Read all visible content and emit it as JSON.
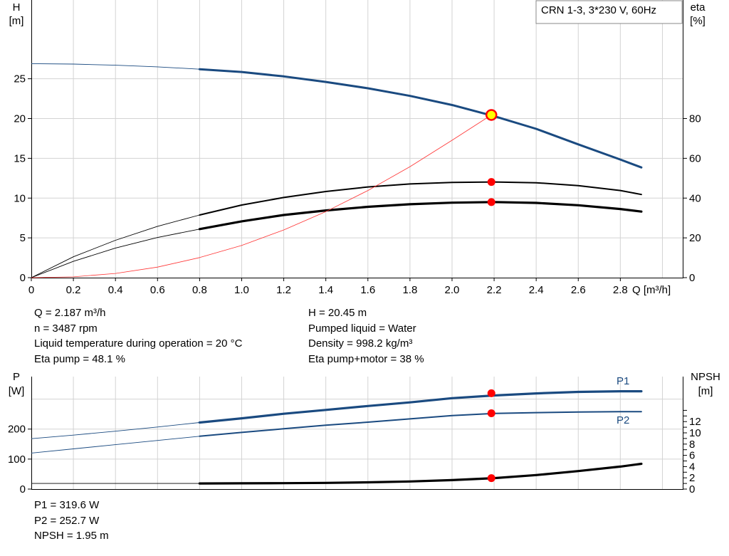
{
  "model_label": "CRN 1-3, 3*230 V, 60Hz",
  "colors": {
    "head": "#1a4a80",
    "power": "#1a4a80",
    "eta": "#ff3333",
    "black": "#000000",
    "marker": "#ff0000",
    "duty_fill": "#ffff00",
    "grid": "#d3d3d3"
  },
  "chart_data": [
    {
      "type": "line",
      "x_axis": {
        "label": "Q [m³/h]",
        "range": [
          0,
          3.1
        ],
        "ticks": [
          "0",
          "0.2",
          "0.4",
          "0.6",
          "0.8",
          "1.0",
          "1.2",
          "1.4",
          "1.6",
          "1.8",
          "2.0",
          "2.2",
          "2.4",
          "2.6",
          "2.8"
        ]
      },
      "y_axis_left": {
        "label_line1": "H",
        "label_line2": "[m]",
        "range": [
          0,
          34.9
        ],
        "ticks": [
          "0",
          "5",
          "10",
          "15",
          "20",
          "25"
        ]
      },
      "y_axis_right": {
        "label_line1": "eta",
        "label_line2": "[%]",
        "range": [
          0,
          139.6
        ],
        "ticks": [
          "0",
          "20",
          "40",
          "60",
          "80"
        ]
      },
      "grid": true,
      "series": [
        {
          "id": "head",
          "axis": "left",
          "color": "#1a4a80",
          "thin_until": 0.8,
          "x": [
            0,
            0.2,
            0.4,
            0.6,
            0.8,
            1.0,
            1.2,
            1.4,
            1.6,
            1.8,
            2.0,
            2.2,
            2.4,
            2.6,
            2.8,
            2.9
          ],
          "y": [
            26.9,
            26.85,
            26.7,
            26.5,
            26.2,
            25.85,
            25.3,
            24.6,
            23.8,
            22.85,
            21.7,
            20.3,
            18.7,
            16.75,
            14.85,
            13.85
          ]
        },
        {
          "id": "eta-pump",
          "axis": "right",
          "color": "#000000",
          "thin_until": 0.8,
          "x": [
            0,
            0.2,
            0.4,
            0.6,
            0.8,
            1.0,
            1.2,
            1.4,
            1.6,
            1.8,
            2.0,
            2.2,
            2.4,
            2.6,
            2.8,
            2.9
          ],
          "y": [
            0,
            10.5,
            18.8,
            25.8,
            31.5,
            36.5,
            40.3,
            43.3,
            45.6,
            47.1,
            47.9,
            48.1,
            47.7,
            46.3,
            43.8,
            41.8
          ]
        },
        {
          "id": "eta-pump-motor",
          "axis": "right",
          "color": "#000000",
          "thin_until": 0.8,
          "x": [
            0,
            0.2,
            0.4,
            0.6,
            0.8,
            1.0,
            1.2,
            1.4,
            1.6,
            1.8,
            2.0,
            2.2,
            2.4,
            2.6,
            2.8,
            2.9
          ],
          "y": [
            0,
            8.2,
            14.9,
            20.2,
            24.4,
            28.3,
            31.5,
            33.8,
            35.6,
            36.9,
            37.7,
            38.0,
            37.6,
            36.4,
            34.5,
            33.2
          ]
        },
        {
          "id": "eta-line",
          "axis": "right",
          "color": "#ff3333",
          "thin_until": 2.9,
          "x": [
            0,
            0.2,
            0.4,
            0.6,
            0.8,
            1.0,
            1.2,
            1.4,
            1.6,
            1.8,
            2.0,
            2.187
          ],
          "y": [
            0,
            0.4,
            2.1,
            5.3,
            10.1,
            16.2,
            24.0,
            33.2,
            43.8,
            55.8,
            69.1,
            81.8
          ]
        }
      ],
      "markers": [
        {
          "x": 2.187,
          "y": 20.45,
          "axis": "left",
          "kind": "duty"
        },
        {
          "x": 2.187,
          "y": 48.1,
          "axis": "right",
          "kind": "point"
        },
        {
          "x": 2.187,
          "y": 38.0,
          "axis": "right",
          "kind": "point"
        }
      ]
    },
    {
      "type": "line",
      "x_axis": {
        "range": [
          0,
          3.1
        ]
      },
      "y_axis_left": {
        "label_line1": "P",
        "label_line2": "[W]",
        "range": [
          0,
          375
        ],
        "ticks": [
          "0",
          "100",
          "200"
        ]
      },
      "y_axis_right": {
        "label_line1": "NPSH",
        "label_line2": "[m]",
        "range": [
          0,
          20
        ],
        "ticks": [
          "0",
          "2",
          "4",
          "6",
          "8",
          "10",
          "12"
        ]
      },
      "grid": true,
      "series": [
        {
          "id": "P1",
          "name": "P1",
          "axis": "left",
          "color": "#1a4a80",
          "thin_until": 0.8,
          "x": [
            0,
            0.2,
            0.4,
            0.6,
            0.8,
            1.0,
            1.2,
            1.4,
            1.6,
            1.8,
            2.0,
            2.2,
            2.4,
            2.6,
            2.8,
            2.9
          ],
          "y": [
            168,
            180,
            193,
            207,
            222,
            236,
            251,
            264,
            277,
            289,
            303,
            312,
            319,
            324,
            326,
            326
          ]
        },
        {
          "id": "P2",
          "name": "P2",
          "axis": "left",
          "color": "#1a4a80",
          "thin_until": 0.8,
          "x": [
            0,
            0.2,
            0.4,
            0.6,
            0.8,
            1.0,
            1.2,
            1.4,
            1.6,
            1.8,
            2.0,
            2.2,
            2.4,
            2.6,
            2.8,
            2.9
          ],
          "y": [
            120,
            134,
            148,
            162,
            176,
            189,
            201,
            213,
            223,
            234,
            245,
            252,
            255,
            257,
            258,
            258
          ]
        },
        {
          "id": "NPSH",
          "axis": "right",
          "color": "#000000",
          "thin_until": 0.8,
          "x": [
            0,
            0.2,
            0.4,
            0.6,
            0.8,
            1.0,
            1.2,
            1.4,
            1.6,
            1.8,
            2.0,
            2.2,
            2.4,
            2.6,
            2.8,
            2.9
          ],
          "y": [
            1.0,
            1.0,
            1.0,
            1.0,
            1.0,
            1.02,
            1.05,
            1.1,
            1.2,
            1.35,
            1.6,
            1.95,
            2.5,
            3.2,
            4.0,
            4.5
          ]
        }
      ],
      "markers": [
        {
          "x": 2.187,
          "y": 319.6,
          "axis": "left",
          "kind": "point"
        },
        {
          "x": 2.187,
          "y": 252.7,
          "axis": "left",
          "kind": "point"
        },
        {
          "x": 2.187,
          "y": 1.95,
          "axis": "right",
          "kind": "point"
        }
      ]
    }
  ],
  "operating_point": {
    "left": [
      "Q = 2.187 m³/h",
      "n = 3487 rpm",
      "Liquid temperature during operation = 20 °C",
      "Eta pump = 48.1 %"
    ],
    "right": [
      "H = 20.45 m",
      "Pumped liquid = Water",
      "Density = 998.2 kg/m³",
      "Eta pump+motor = 38 %"
    ]
  },
  "power_values": [
    "P1 = 319.6 W",
    "P2 = 252.7 W",
    "NPSH = 1.95 m"
  ]
}
